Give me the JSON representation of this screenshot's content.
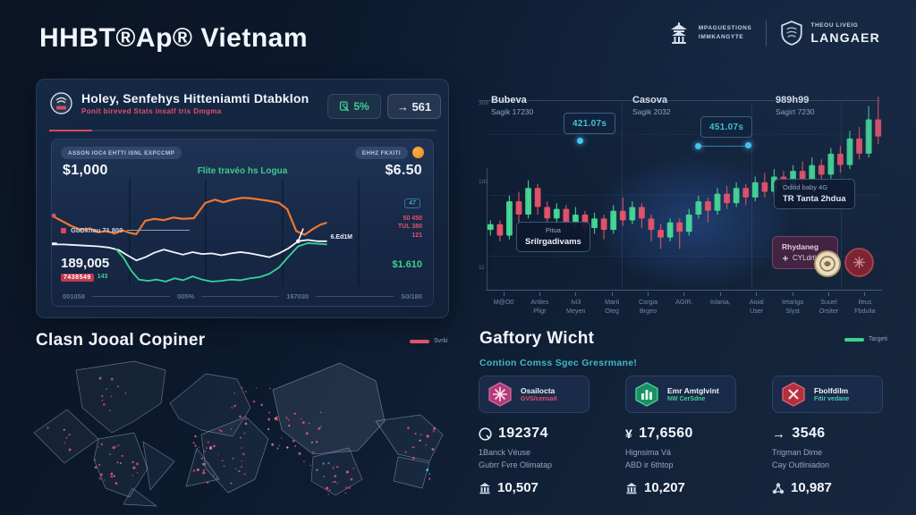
{
  "colors": {
    "orange": "#f2762e",
    "green": "#3fd08f",
    "red": "#e8506a",
    "teal": "#57d0e8",
    "candle_up": "#4ae39b",
    "candle_down": "#f3566a"
  },
  "header": {
    "title": "HHBT®Ap® Vietnam",
    "logo1": {
      "line1": "MPAGUESTIONS",
      "line2": "IMMKANGYTE"
    },
    "logo2": {
      "line1": "THEOU LIVEIG",
      "line2": "LANGAER"
    }
  },
  "left_panel": {
    "title": "Holey, Senfehys Hitteniamti Dtabklon",
    "subtitle": "Ponit bireved Stats insalf tris Dmgma",
    "badge_percent": "5%",
    "badge_count": "→ 561",
    "tag_left": "ASSON IOC4 EHTTI ISNL EXPCCMP",
    "tag_right": "EHHZ FKXITI",
    "value_left": "$1,000",
    "value_right": "$6.50",
    "center_label": "Flite travéo hs Logua",
    "mid_label": "GbDknau 71 800",
    "big_value": "189,005",
    "big_badge_red": "7438549",
    "big_badge_green": "143",
    "chip_small": "47",
    "ann_red_1": "50 450",
    "ann_red_2": "TUL 380",
    "ann_red_3": "121",
    "ann_white": "6.Ed1M",
    "green_value": "$1.610",
    "axis_labels": [
      "001058",
      "005%",
      "167030",
      "S0/180"
    ]
  },
  "right_chart": {
    "headers": [
      {
        "t": "Bubeva",
        "s": "Sagik 17230"
      },
      {
        "t": "Casova",
        "s": "Sagik 2032"
      },
      {
        "t": "989h99",
        "s": "Sagirt 7230"
      }
    ],
    "chip1": "421.07s",
    "chip2": "451.07s",
    "tooltip1": {
      "l1": "Pitua",
      "l2": "Srilrgadivams"
    },
    "tooltip2": {
      "l1": "Oditid baby 4G",
      "l2": "TR Tanta 2hdua"
    },
    "purple_badge": {
      "l1": "Rhydaneg",
      "l2": "CYLdrtigsu"
    }
  },
  "map_section": {
    "title": "Clasn Jooal Copiner",
    "legend": "Svrki"
  },
  "metrics": {
    "title": "Gaftory Wicht",
    "subtitle": "Contion Comss Sgec Gresrmane!",
    "legend": "Targeti",
    "columns": [
      {
        "card_title": "Osailocta",
        "card_sub": "GVS/censait",
        "stat": "192374",
        "line1": "1Banck Véuse",
        "line2": "Gubrr Fvre Olimatap",
        "bottom": "10,507"
      },
      {
        "card_title": "Emr Amtglvint",
        "card_sub": "NW CerSdne",
        "stat": "17,6560",
        "line1": "Hignsima Vá",
        "line2": "ABD ir 6thtop",
        "bottom": "10,207"
      },
      {
        "card_title": "Fbolfdilm",
        "card_sub": "Fitir vedane",
        "stat": "3546",
        "line1": "Trigman Dime",
        "line2": "Cay Outliniadon",
        "bottom": "10,987"
      }
    ]
  },
  "chart_data": [
    {
      "type": "line",
      "title": "left-panel-trend",
      "xlabel": "",
      "ylabel": "",
      "legend_position": "none",
      "series": [
        {
          "name": "price-orange",
          "color": "#f2762e",
          "width": 2.2,
          "points": [
            [
              0,
              52
            ],
            [
              15,
              60
            ],
            [
              30,
              68
            ],
            [
              45,
              74
            ],
            [
              60,
              72
            ],
            [
              72,
              78
            ],
            [
              85,
              76
            ],
            [
              98,
              80
            ],
            [
              110,
              75
            ],
            [
              122,
              79
            ],
            [
              132,
              81
            ],
            [
              146,
              60
            ],
            [
              160,
              57
            ],
            [
              175,
              59
            ],
            [
              190,
              55
            ],
            [
              205,
              57
            ],
            [
              222,
              56
            ],
            [
              240,
              32
            ],
            [
              255,
              27
            ],
            [
              268,
              31
            ],
            [
              282,
              27
            ],
            [
              298,
              24
            ],
            [
              312,
              25
            ],
            [
              326,
              27
            ],
            [
              340,
              29
            ],
            [
              355,
              32
            ],
            [
              368,
              42
            ],
            [
              382,
              76
            ],
            [
              395,
              82
            ],
            [
              408,
              73
            ],
            [
              420,
              66
            ],
            [
              430,
              63
            ]
          ]
        },
        {
          "name": "baseline-white",
          "color": "#f2f6fb",
          "width": 1.8,
          "points": [
            [
              0,
              97
            ],
            [
              18,
              97
            ],
            [
              36,
              98
            ],
            [
              54,
              99
            ],
            [
              72,
              100
            ],
            [
              90,
              102
            ],
            [
              105,
              106
            ],
            [
              118,
              114
            ],
            [
              132,
              122
            ],
            [
              146,
              117
            ],
            [
              160,
              110
            ],
            [
              175,
              105
            ],
            [
              190,
              109
            ],
            [
              205,
              113
            ],
            [
              220,
              109
            ],
            [
              235,
              112
            ],
            [
              250,
              111
            ],
            [
              265,
              114
            ],
            [
              280,
              111
            ],
            [
              295,
              109
            ],
            [
              310,
              111
            ],
            [
              325,
              114
            ],
            [
              340,
              117
            ],
            [
              355,
              111
            ],
            [
              370,
              103
            ],
            [
              385,
              92
            ],
            [
              400,
              90
            ],
            [
              415,
              92
            ],
            [
              430,
              92
            ]
          ]
        },
        {
          "name": "low-green",
          "color": "#35d690",
          "width": 1.8,
          "points": [
            [
              100,
              104
            ],
            [
              112,
              118
            ],
            [
              124,
              138
            ],
            [
              136,
              152
            ],
            [
              150,
              154
            ],
            [
              164,
              152
            ],
            [
              178,
              155
            ],
            [
              192,
              150
            ],
            [
              205,
              153
            ],
            [
              220,
              147
            ],
            [
              235,
              152
            ],
            [
              250,
              155
            ],
            [
              265,
              154
            ],
            [
              280,
              152
            ],
            [
              295,
              153
            ],
            [
              310,
              150
            ],
            [
              325,
              148
            ],
            [
              340,
              143
            ],
            [
              355,
              133
            ],
            [
              370,
              116
            ],
            [
              385,
              100
            ],
            [
              400,
              95
            ],
            [
              415,
              96
            ],
            [
              430,
              97
            ]
          ]
        }
      ]
    },
    {
      "type": "candlestick",
      "title": "vietnam-market-candles",
      "ylim": [
        0,
        100
      ],
      "y_labels": [
        "308",
        "1d1",
        "11"
      ],
      "x_labels": [
        [
          "",
          "M@O0"
        ],
        [
          "Artiles",
          "Pligr"
        ],
        [
          "Ivi3",
          "Meyen"
        ],
        [
          "Marti",
          "Oteg"
        ],
        [
          "Corgia",
          "Brgeo"
        ],
        [
          "AGIR.",
          ""
        ],
        [
          "Islania,",
          ""
        ],
        [
          "Aoial",
          "User"
        ],
        [
          "Ietariga",
          "Slyst"
        ],
        [
          "Suuel",
          "Orsiter"
        ],
        [
          "Ileus",
          "Fbdulia"
        ]
      ],
      "candles": [
        [
          30,
          35,
          27,
          33
        ],
        [
          33,
          35,
          24,
          27
        ],
        [
          27,
          48,
          25,
          45
        ],
        [
          45,
          50,
          33,
          38
        ],
        [
          38,
          56,
          36,
          52
        ],
        [
          52,
          54,
          38,
          42
        ],
        [
          42,
          45,
          30,
          36
        ],
        [
          36,
          44,
          33,
          41
        ],
        [
          41,
          43,
          29,
          33
        ],
        [
          33,
          42,
          30,
          38
        ],
        [
          38,
          40,
          26,
          31
        ],
        [
          31,
          39,
          28,
          36
        ],
        [
          36,
          38,
          25,
          30
        ],
        [
          30,
          43,
          28,
          40
        ],
        [
          40,
          47,
          32,
          35
        ],
        [
          35,
          45,
          33,
          42
        ],
        [
          42,
          44,
          31,
          36
        ],
        [
          36,
          38,
          24,
          30
        ],
        [
          30,
          33,
          20,
          26
        ],
        [
          26,
          36,
          24,
          34
        ],
        [
          34,
          36,
          20,
          29
        ],
        [
          29,
          41,
          27,
          38
        ],
        [
          38,
          48,
          36,
          45
        ],
        [
          45,
          47,
          34,
          40
        ],
        [
          40,
          52,
          38,
          49
        ],
        [
          49,
          53,
          41,
          44
        ],
        [
          44,
          55,
          42,
          52
        ],
        [
          52,
          54,
          43,
          47
        ],
        [
          47,
          58,
          45,
          55
        ],
        [
          55,
          60,
          47,
          50
        ],
        [
          50,
          62,
          48,
          58
        ],
        [
          58,
          61,
          50,
          53
        ],
        [
          53,
          64,
          51,
          61
        ],
        [
          61,
          66,
          53,
          56
        ],
        [
          56,
          68,
          54,
          64
        ],
        [
          64,
          67,
          55,
          59
        ],
        [
          59,
          73,
          57,
          70
        ],
        [
          70,
          74,
          60,
          64
        ],
        [
          64,
          82,
          62,
          78
        ],
        [
          78,
          84,
          67,
          70
        ],
        [
          70,
          95,
          68,
          88
        ],
        [
          88,
          100,
          75,
          79
        ]
      ]
    }
  ]
}
